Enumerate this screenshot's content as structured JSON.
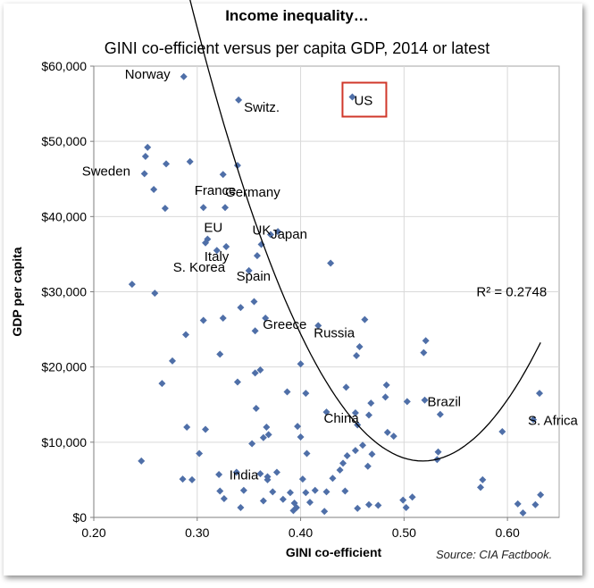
{
  "title": "Income inequality…",
  "subtitle": "GINI co-efficient versus per capita GDP, 2014 or latest",
  "source": "Source: CIA Factbook.",
  "colors": {
    "marker": "#4F6FA8",
    "trend": "#000000",
    "highlight": "#D0382B",
    "grid": "#D9D9D9"
  },
  "chart_data": {
    "type": "scatter",
    "xlabel": "GINI co-efficient",
    "ylabel": "GDP per capita",
    "xlim": [
      0.2,
      0.65
    ],
    "ylim": [
      0,
      60000
    ],
    "xticks": [
      0.2,
      0.3,
      0.4,
      0.5,
      0.6
    ],
    "xtick_labels": [
      "0.20",
      "0.30",
      "0.40",
      "0.50",
      "0.60"
    ],
    "yticks": [
      0,
      10000,
      20000,
      30000,
      40000,
      50000,
      60000
    ],
    "ytick_labels": [
      "$0",
      "$10,000",
      "$20,000",
      "$30,000",
      "$40,000",
      "$50,000",
      "$60,000"
    ],
    "grid": true,
    "points": [
      [
        0.287,
        58600
      ],
      [
        0.34,
        55500
      ],
      [
        0.45,
        55900
      ],
      [
        0.252,
        49200
      ],
      [
        0.25,
        48000
      ],
      [
        0.249,
        45700
      ],
      [
        0.27,
        47000
      ],
      [
        0.293,
        47300
      ],
      [
        0.325,
        45600
      ],
      [
        0.339,
        46800
      ],
      [
        0.258,
        43600
      ],
      [
        0.269,
        41100
      ],
      [
        0.306,
        41200
      ],
      [
        0.327,
        41200
      ],
      [
        0.31,
        37000
      ],
      [
        0.308,
        36500
      ],
      [
        0.328,
        36000
      ],
      [
        0.319,
        35500
      ],
      [
        0.362,
        36300
      ],
      [
        0.358,
        34800
      ],
      [
        0.378,
        38000
      ],
      [
        0.371,
        37600
      ],
      [
        0.35,
        32800
      ],
      [
        0.429,
        33800
      ],
      [
        0.237,
        31000
      ],
      [
        0.259,
        29800
      ],
      [
        0.355,
        28700
      ],
      [
        0.342,
        27900
      ],
      [
        0.306,
        26200
      ],
      [
        0.325,
        26500
      ],
      [
        0.366,
        26500
      ],
      [
        0.462,
        26300
      ],
      [
        0.417,
        25500
      ],
      [
        0.356,
        24800
      ],
      [
        0.289,
        24300
      ],
      [
        0.457,
        22700
      ],
      [
        0.454,
        21500
      ],
      [
        0.521,
        23500
      ],
      [
        0.519,
        21900
      ],
      [
        0.322,
        21700
      ],
      [
        0.276,
        20800
      ],
      [
        0.356,
        19200
      ],
      [
        0.361,
        19600
      ],
      [
        0.4,
        20400
      ],
      [
        0.266,
        17800
      ],
      [
        0.339,
        18000
      ],
      [
        0.444,
        17300
      ],
      [
        0.483,
        17600
      ],
      [
        0.387,
        16700
      ],
      [
        0.405,
        16500
      ],
      [
        0.482,
        16000
      ],
      [
        0.631,
        16500
      ],
      [
        0.52,
        15600
      ],
      [
        0.503,
        15400
      ],
      [
        0.468,
        15200
      ],
      [
        0.357,
        14500
      ],
      [
        0.535,
        13700
      ],
      [
        0.425,
        14000
      ],
      [
        0.453,
        13900
      ],
      [
        0.466,
        13600
      ],
      [
        0.625,
        13000
      ],
      [
        0.29,
        12000
      ],
      [
        0.308,
        11700
      ],
      [
        0.367,
        12000
      ],
      [
        0.397,
        12100
      ],
      [
        0.455,
        12300
      ],
      [
        0.595,
        11400
      ],
      [
        0.369,
        11000
      ],
      [
        0.364,
        10600
      ],
      [
        0.4,
        10700
      ],
      [
        0.484,
        11300
      ],
      [
        0.49,
        10800
      ],
      [
        0.353,
        9800
      ],
      [
        0.46,
        9600
      ],
      [
        0.453,
        8900
      ],
      [
        0.533,
        8700
      ],
      [
        0.406,
        8500
      ],
      [
        0.469,
        8400
      ],
      [
        0.302,
        8500
      ],
      [
        0.445,
        8200
      ],
      [
        0.532,
        7700
      ],
      [
        0.246,
        7500
      ],
      [
        0.441,
        7200
      ],
      [
        0.465,
        6800
      ],
      [
        0.438,
        6300
      ],
      [
        0.338,
        6000
      ],
      [
        0.321,
        5700
      ],
      [
        0.368,
        5400
      ],
      [
        0.377,
        6000
      ],
      [
        0.361,
        5800
      ],
      [
        0.286,
        5100
      ],
      [
        0.295,
        5000
      ],
      [
        0.368,
        5000
      ],
      [
        0.402,
        5100
      ],
      [
        0.431,
        5200
      ],
      [
        0.576,
        5000
      ],
      [
        0.574,
        4000
      ],
      [
        0.443,
        3500
      ],
      [
        0.345,
        3600
      ],
      [
        0.322,
        3500
      ],
      [
        0.373,
        3400
      ],
      [
        0.39,
        3300
      ],
      [
        0.405,
        3300
      ],
      [
        0.414,
        3600
      ],
      [
        0.425,
        3400
      ],
      [
        0.499,
        2300
      ],
      [
        0.508,
        2700
      ],
      [
        0.326,
        2500
      ],
      [
        0.383,
        2400
      ],
      [
        0.364,
        2200
      ],
      [
        0.394,
        1900
      ],
      [
        0.396,
        1300
      ],
      [
        0.409,
        2000
      ],
      [
        0.455,
        1200
      ],
      [
        0.466,
        1700
      ],
      [
        0.475,
        1600
      ],
      [
        0.502,
        1300
      ],
      [
        0.61,
        1800
      ],
      [
        0.627,
        1700
      ],
      [
        0.632,
        3000
      ],
      [
        0.615,
        600
      ],
      [
        0.342,
        1300
      ],
      [
        0.423,
        800
      ],
      [
        0.393,
        900
      ]
    ],
    "labels": [
      {
        "text": "Norway",
        "x": 0.287,
        "y": 58600
      },
      {
        "text": "Switz.",
        "x": 0.34,
        "y": 55500
      },
      {
        "text": "US",
        "x": 0.45,
        "y": 55900
      },
      {
        "text": "Sweden",
        "x": 0.249,
        "y": 45700
      },
      {
        "text": "Germany",
        "x": 0.327,
        "y": 41200
      },
      {
        "text": "France",
        "x": 0.306,
        "y": 41200
      },
      {
        "text": "EU",
        "x": 0.31,
        "y": 37000
      },
      {
        "text": "UK",
        "x": 0.362,
        "y": 36300
      },
      {
        "text": "Japan",
        "x": 0.378,
        "y": 38000
      },
      {
        "text": "Italy",
        "x": 0.319,
        "y": 35500
      },
      {
        "text": "S. Korea",
        "x": 0.306,
        "y": 33400
      },
      {
        "text": "Spain",
        "x": 0.35,
        "y": 32800
      },
      {
        "text": "Greece",
        "x": 0.366,
        "y": 26500
      },
      {
        "text": "Russia",
        "x": 0.417,
        "y": 25500
      },
      {
        "text": "China",
        "x": 0.425,
        "y": 14000
      },
      {
        "text": "Brazil",
        "x": 0.52,
        "y": 15600
      },
      {
        "text": "S. Africa",
        "x": 0.625,
        "y": 13000
      },
      {
        "text": "India",
        "x": 0.338,
        "y": 6000
      }
    ],
    "highlight": "US",
    "trendline": {
      "type": "polynomial",
      "x_range": [
        0.237,
        0.632
      ],
      "a": 1212000,
      "b": 0.518,
      "c": 7500
    },
    "annotation": "R² = 0.2748"
  }
}
